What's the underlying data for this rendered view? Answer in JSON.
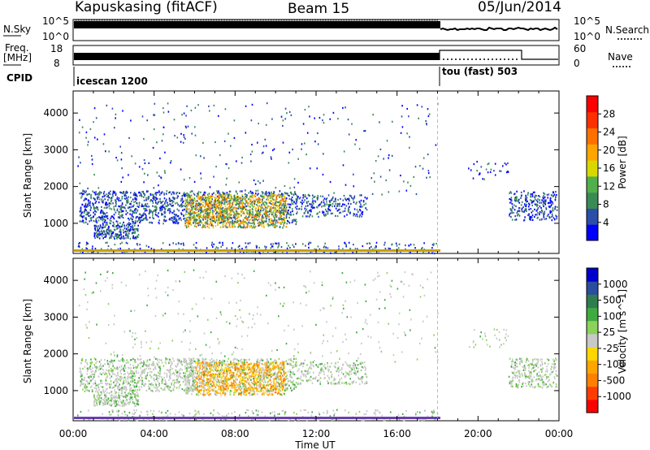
{
  "header": {
    "station": "Kapuskasing (fitACF)",
    "beam": "Beam 15",
    "date": "05/Jun/2014"
  },
  "sky_panel": {
    "left_label": "N.Sky",
    "left_ticks": [
      "10^5",
      "10^0"
    ],
    "right_ticks": [
      "10^5",
      "10^0"
    ],
    "right_label": "N.Search"
  },
  "freq_panel": {
    "left_label_1": "Freq.",
    "left_label_2": "[MHz]",
    "left_ticks": [
      "18",
      "8"
    ],
    "right_ticks": [
      "60",
      "0"
    ],
    "right_label": "Nave"
  },
  "cpid_panel": {
    "label": "CPID",
    "mode_1": "icescan 1200",
    "mode_2": "tou (fast) 503"
  },
  "chart_data": [
    {
      "type": "heatmap",
      "title": "",
      "xlabel": "Time UT",
      "ylabel": "Slant Range [km]",
      "x_tick_labels": [
        "00:00",
        "04:00",
        "08:00",
        "12:00",
        "16:00",
        "20:00",
        "00:00"
      ],
      "y_tick_labels": [
        "1000",
        "2000",
        "3000",
        "4000"
      ],
      "xlim": [
        0,
        24
      ],
      "ylim": [
        180,
        4600
      ],
      "colorbar_label": "Power [dB]",
      "colorbar_ticks": [
        "4",
        "8",
        "12",
        "16",
        "20",
        "24",
        "28"
      ],
      "colorbar_colors": [
        "#0000ff",
        "#2b4ea8",
        "#3a8a55",
        "#52b04a",
        "#d8d800",
        "#ffa500",
        "#ff7000",
        "#ff3000",
        "#ff0000"
      ]
    },
    {
      "type": "heatmap",
      "title": "",
      "xlabel": "Time UT",
      "ylabel": "Slant Range [km]",
      "x_tick_labels": [
        "00:00",
        "04:00",
        "08:00",
        "12:00",
        "16:00",
        "20:00",
        "00:00"
      ],
      "y_tick_labels": [
        "1000",
        "2000",
        "3000",
        "4000"
      ],
      "xlim": [
        0,
        24
      ],
      "ylim": [
        180,
        4600
      ],
      "colorbar_label": "Velocity [m s^-1]",
      "colorbar_ticks": [
        "1000",
        "500",
        "100",
        "25",
        "-25",
        "-100",
        "-500",
        "-1000"
      ],
      "colorbar_colors": [
        "#0000cc",
        "#2a4e9c",
        "#2e7d4f",
        "#3faa3f",
        "#8bd15b",
        "#c8c8c8",
        "#ffd700",
        "#ffa500",
        "#ff7f00",
        "#ff3c00",
        "#ff0000"
      ]
    }
  ]
}
